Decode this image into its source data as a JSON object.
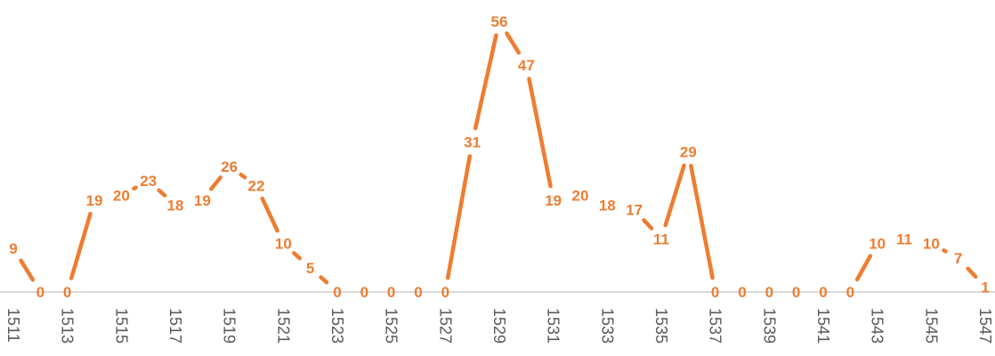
{
  "chart_data": {
    "type": "line",
    "title": "",
    "xlabel": "",
    "ylabel": "",
    "x": [
      1511,
      1512,
      1513,
      1514,
      1515,
      1516,
      1517,
      1518,
      1519,
      1520,
      1521,
      1522,
      1523,
      1524,
      1525,
      1526,
      1527,
      1528,
      1529,
      1530,
      1531,
      1532,
      1533,
      1534,
      1535,
      1536,
      1537,
      1538,
      1539,
      1540,
      1541,
      1542,
      1543,
      1544,
      1545,
      1546,
      1547
    ],
    "tick_labels": [
      "1511",
      "1513",
      "1515",
      "1517",
      "1519",
      "1521",
      "1523",
      "1525",
      "1527",
      "1529",
      "1531",
      "1533",
      "1535",
      "1537",
      "1539",
      "1541",
      "1543",
      "1545",
      "1547"
    ],
    "series": [
      {
        "values": [
          9,
          0,
          0,
          19,
          20,
          23,
          18,
          19,
          26,
          22,
          10,
          5,
          0,
          0,
          0,
          0,
          0,
          31,
          56,
          47,
          19,
          20,
          18,
          17,
          11,
          29,
          0,
          0,
          0,
          0,
          0,
          0,
          10,
          11,
          10,
          7,
          1
        ]
      }
    ],
    "ylim": [
      0,
      56
    ],
    "grid": false,
    "colors": {
      "line": "#ED7D31",
      "label": "#ED7D31",
      "axis": "#D9D9D9",
      "tick": "#595959"
    }
  }
}
